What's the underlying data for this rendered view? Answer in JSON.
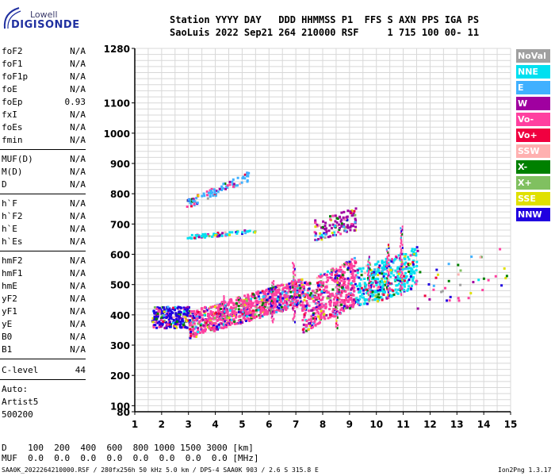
{
  "logo": {
    "lowell": "Lowell",
    "digisonde": "DIGISONDE"
  },
  "header": {
    "line1": "Station YYYY DAY   DDD HHMMSS P1  FFS S AXN PPS IGA PS",
    "line2": "SaoLuis 2022 Sep21 264 210000 RSF     1 715 100 00- 11"
  },
  "params_group1": [
    {
      "name": "foF2",
      "value": "N/A"
    },
    {
      "name": "foF1",
      "value": "N/A"
    },
    {
      "name": "foF1p",
      "value": "N/A"
    },
    {
      "name": "foE",
      "value": "N/A"
    },
    {
      "name": "foEp",
      "value": "0.93"
    },
    {
      "name": "fxI",
      "value": "N/A"
    },
    {
      "name": "foEs",
      "value": "N/A"
    },
    {
      "name": "fmin",
      "value": "N/A"
    }
  ],
  "params_group2": [
    {
      "name": "MUF(D)",
      "value": "N/A"
    },
    {
      "name": "M(D)",
      "value": "N/A"
    },
    {
      "name": "D",
      "value": "N/A"
    }
  ],
  "params_group3": [
    {
      "name": "h`F",
      "value": "N/A"
    },
    {
      "name": "h`F2",
      "value": "N/A"
    },
    {
      "name": "h`E",
      "value": "N/A"
    },
    {
      "name": "h`Es",
      "value": "N/A"
    }
  ],
  "params_group4": [
    {
      "name": "hmF2",
      "value": "N/A"
    },
    {
      "name": "hmF1",
      "value": "N/A"
    },
    {
      "name": "hmE",
      "value": "N/A"
    },
    {
      "name": "yF2",
      "value": "N/A"
    },
    {
      "name": "yF1",
      "value": "N/A"
    },
    {
      "name": "yE",
      "value": "N/A"
    },
    {
      "name": "B0",
      "value": "N/A"
    },
    {
      "name": "B1",
      "value": "N/A"
    }
  ],
  "clevel": {
    "name": "C-level",
    "value": "44"
  },
  "auto": {
    "line1": "Auto:",
    "line2": "Artist5",
    "line3": "500200"
  },
  "bottom": {
    "d_line": "D    100  200  400  600  800 1000 1500 3000 [km]",
    "muf_line": "MUF  0.0  0.0  0.0  0.0  0.0  0.0  0.0  0.0 [MHz]"
  },
  "footer": {
    "left": "SAA0K_2022264210000.RSF / 280fx256h 50 kHz 5.0 km / DPS-4 SAA0K 903 / 2.6 S 315.8 E",
    "right": "Ion2Png 1.3.17"
  },
  "legend": [
    {
      "label": "NoVal",
      "color": "#a0a0a0"
    },
    {
      "label": "NNE",
      "color": "#00e0f0"
    },
    {
      "label": "E",
      "color": "#40b0ff"
    },
    {
      "label": "W",
      "color": "#a000a0"
    },
    {
      "label": "Vo-",
      "color": "#ff40a0"
    },
    {
      "label": "Vo+",
      "color": "#f00040"
    },
    {
      "label": "SSW",
      "color": "#ffb0b0"
    },
    {
      "label": "X-",
      "color": "#008000"
    },
    {
      "label": "X+",
      "color": "#80c060"
    },
    {
      "label": "SSE",
      "color": "#e0e000"
    },
    {
      "label": "NNW",
      "color": "#2000e0"
    }
  ],
  "chart_data": {
    "type": "scatter",
    "title": "",
    "xlabel": "",
    "ylabel": "",
    "x_ticks": [
      1,
      2,
      3,
      4,
      5,
      6,
      7,
      8,
      9,
      10,
      11,
      12,
      13,
      14,
      15
    ],
    "y_ticks": [
      80,
      100,
      200,
      300,
      400,
      500,
      600,
      700,
      800,
      900,
      1000,
      1100,
      1280
    ],
    "xlim": [
      1,
      15
    ],
    "ylim": [
      80,
      1280
    ],
    "grid": true,
    "legend_position": "right",
    "clusters": [
      {
        "name": "F-trace low",
        "x0": 1.6,
        "x1": 3.0,
        "y0": 350,
        "y1": 440
      },
      {
        "name": "F-trace main",
        "x0": 3.0,
        "x1": 7.2,
        "y0": 360,
        "y1": 520
      },
      {
        "name": "F-trace mid",
        "x0": 7.2,
        "x1": 9.2,
        "y0": 380,
        "y1": 560
      },
      {
        "name": "F-trace high",
        "x0": 9.2,
        "x1": 11.5,
        "y0": 450,
        "y1": 600
      },
      {
        "name": "second hop",
        "x0": 7.6,
        "x1": 9.2,
        "y0": 660,
        "y1": 740
      },
      {
        "name": "upper scatter",
        "x0": 2.9,
        "x1": 5.2,
        "y0": 760,
        "y1": 880
      },
      {
        "name": "cyan band",
        "x0": 2.9,
        "x1": 5.5,
        "y0": 650,
        "y1": 690
      },
      {
        "name": "sparse tail",
        "x0": 11.5,
        "x1": 14.9,
        "y0": 440,
        "y1": 600
      }
    ]
  }
}
